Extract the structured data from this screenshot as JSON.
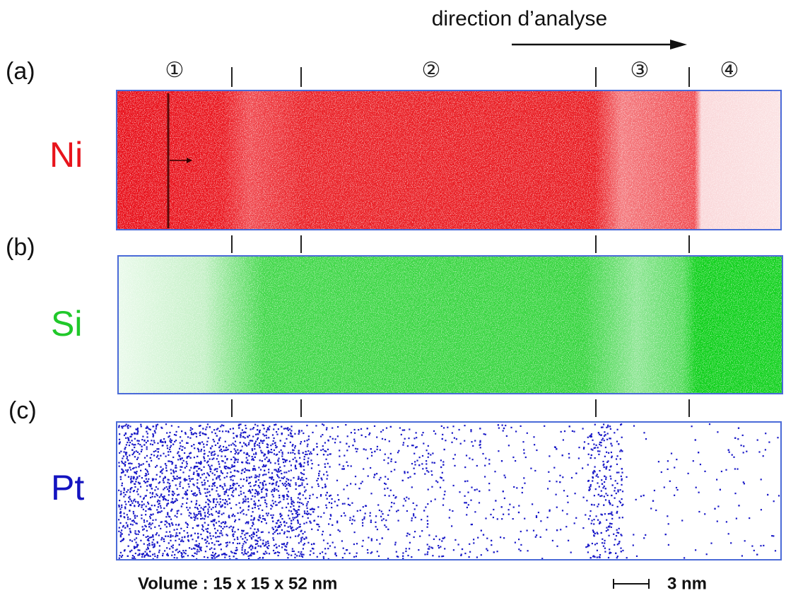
{
  "header": {
    "title": "direction d’analyse"
  },
  "regions": [
    "①",
    "②",
    "③",
    "④"
  ],
  "panels": [
    {
      "label": "(a)",
      "element": "Ni"
    },
    {
      "label": "(b)",
      "element": "Si"
    },
    {
      "label": "(c)",
      "element": "Pt"
    }
  ],
  "footer": {
    "volume": "Volume : 15 x 15 x 52 nm",
    "scale": "3 nm"
  }
}
